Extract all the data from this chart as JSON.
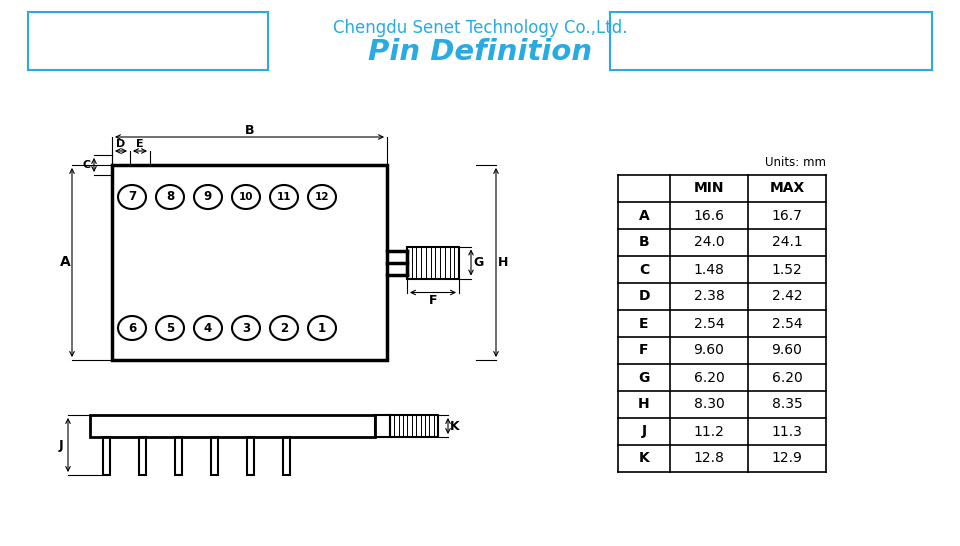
{
  "title_company": "Chengdu Senet Technology Co.,Ltd.",
  "title_main": "Pin Definition",
  "bg_color": "#ffffff",
  "line_color": "#000000",
  "blue_color": "#29ABE2",
  "table_data": {
    "headers": [
      "",
      "MIN",
      "MAX"
    ],
    "rows": [
      [
        "A",
        "16.6",
        "16.7"
      ],
      [
        "B",
        "24.0",
        "24.1"
      ],
      [
        "C",
        "1.48",
        "1.52"
      ],
      [
        "D",
        "2.38",
        "2.42"
      ],
      [
        "E",
        "2.54",
        "2.54"
      ],
      [
        "F",
        "9.60",
        "9.60"
      ],
      [
        "G",
        "6.20",
        "6.20"
      ],
      [
        "H",
        "8.30",
        "8.35"
      ],
      [
        "J",
        "11.2",
        "11.3"
      ],
      [
        "K",
        "12.8",
        "12.9"
      ]
    ]
  },
  "units_text": "Units: mm",
  "top_pins_labels": [
    "7",
    "8",
    "9",
    "10",
    "11",
    "12"
  ],
  "bottom_pins_labels": [
    "6",
    "5",
    "4",
    "3",
    "2",
    "1"
  ]
}
